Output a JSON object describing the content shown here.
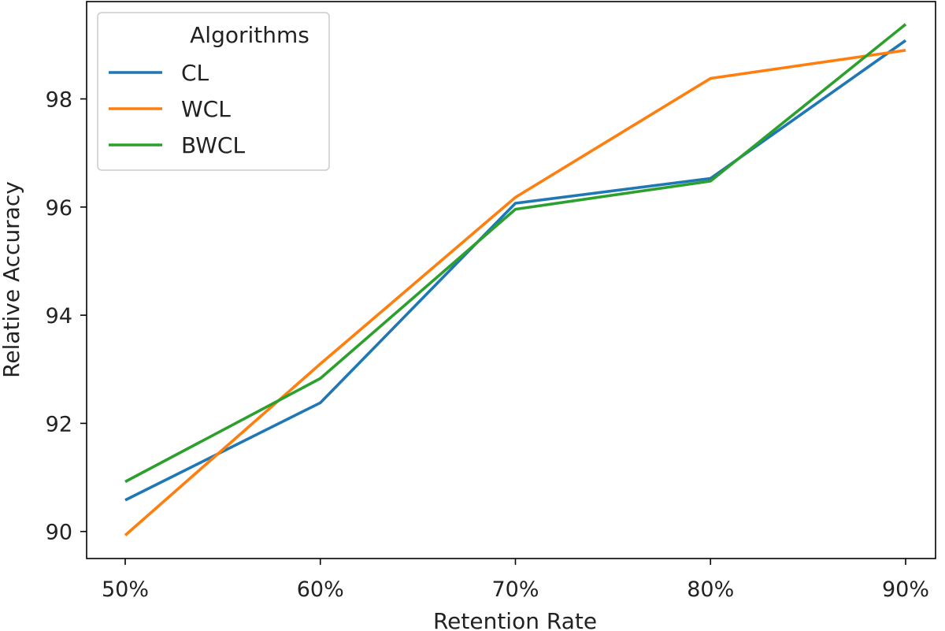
{
  "chart_data": {
    "type": "line",
    "title": "",
    "xlabel": "Retention Rate",
    "ylabel": "Relative Accuracy",
    "categories": [
      "50%",
      "60%",
      "70%",
      "80%",
      "90%"
    ],
    "ylim": [
      89.5,
      99.8
    ],
    "yticks": [
      90,
      92,
      94,
      96,
      98
    ],
    "grid": false,
    "legend": {
      "title": "Algorithms",
      "placement": "top-left"
    },
    "series": [
      {
        "name": "CL",
        "color": "#1f77b4",
        "values": [
          90.58,
          92.38,
          96.07,
          96.53,
          99.08
        ]
      },
      {
        "name": "WCL",
        "color": "#ff7f0e",
        "values": [
          89.93,
          93.1,
          96.18,
          98.38,
          98.9
        ]
      },
      {
        "name": "BWCL",
        "color": "#2ca02c",
        "values": [
          90.92,
          92.83,
          95.96,
          96.48,
          99.38
        ]
      }
    ]
  }
}
